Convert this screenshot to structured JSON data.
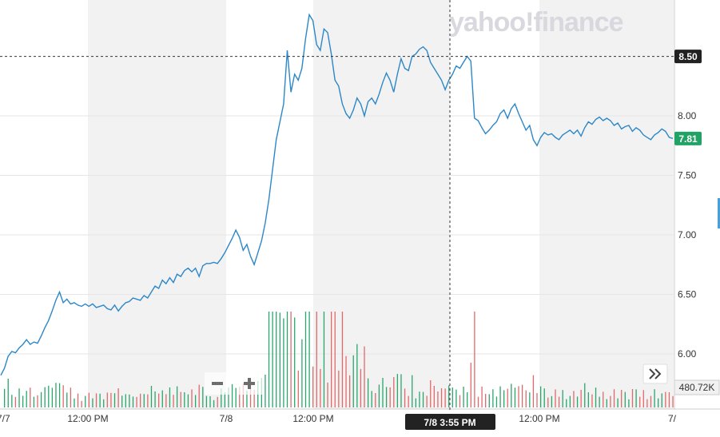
{
  "watermark": "yahoo!finance",
  "colors": {
    "line": "#2c87c8",
    "up_volume": "#2aa66d",
    "down_volume": "#e06a6a",
    "shade": "#f2f2f2",
    "last_price_badge": "#21a366",
    "crosshair_badge": "#222222"
  },
  "chart_data": {
    "type": "line",
    "title": "",
    "xlabel": "",
    "ylabel": "",
    "ylim": [
      5.55,
      8.92
    ],
    "y_ticks": [
      "6.00",
      "6.50",
      "7.00",
      "7.50",
      "8.00"
    ],
    "x_tick_labels": [
      "7/7",
      "12:00 PM",
      "7/8",
      "12:00 PM",
      "12:00 PM",
      "7/"
    ],
    "grid": true,
    "series": [
      {
        "values": [
          5.82,
          5.88,
          5.98,
          6.02,
          6.01,
          6.05,
          6.08,
          6.12,
          6.08,
          6.1,
          6.09,
          6.15,
          6.22,
          6.28,
          6.36,
          6.45,
          6.52,
          6.43,
          6.46,
          6.42,
          6.43,
          6.41,
          6.4,
          6.42,
          6.4,
          6.42,
          6.39,
          6.4,
          6.41,
          6.38,
          6.37,
          6.41,
          6.36,
          6.4,
          6.43,
          6.44,
          6.47,
          6.46,
          6.45,
          6.49,
          6.47,
          6.52,
          6.57,
          6.55,
          6.62,
          6.59,
          6.64,
          6.6,
          6.67,
          6.65,
          6.7,
          6.72,
          6.69,
          6.72,
          6.65,
          6.74,
          6.76,
          6.76,
          6.77,
          6.76,
          6.8,
          6.85,
          6.91,
          6.97,
          7.04,
          6.98,
          6.87,
          6.92,
          6.82,
          6.75,
          6.85,
          6.95,
          7.1,
          7.3,
          7.55,
          7.8,
          7.95,
          8.1,
          8.55,
          8.2,
          8.35,
          8.3,
          8.4,
          8.65,
          8.85,
          8.8,
          8.6,
          8.55,
          8.73,
          8.7,
          8.52,
          8.3,
          8.25,
          8.1,
          8.02,
          7.98,
          8.05,
          8.15,
          8.1,
          8.0,
          8.12,
          8.15,
          8.1,
          8.18,
          8.28,
          8.36,
          8.3,
          8.2,
          8.35,
          8.48,
          8.4,
          8.38,
          8.5,
          8.52,
          8.56,
          8.58,
          8.55,
          8.45,
          8.4,
          8.35,
          8.3,
          8.22,
          8.3,
          8.35,
          8.42,
          8.4,
          8.45,
          8.5,
          8.46,
          7.98,
          7.96,
          7.9,
          7.85,
          7.88,
          7.92,
          7.95,
          8.02,
          8.05,
          7.98,
          8.06,
          8.1,
          8.02,
          7.95,
          7.88,
          7.92,
          7.8,
          7.75,
          7.82,
          7.86,
          7.84,
          7.85,
          7.82,
          7.8,
          7.84,
          7.86,
          7.88,
          7.85,
          7.88,
          7.83,
          7.9,
          7.95,
          7.93,
          7.97,
          7.99,
          7.96,
          7.98,
          7.96,
          7.92,
          7.94,
          7.89,
          7.91,
          7.92,
          7.87,
          7.9,
          7.88,
          7.84,
          7.82,
          7.8,
          7.84,
          7.86,
          7.89,
          7.87,
          7.82,
          7.81
        ]
      }
    ],
    "volume_scale": "480.72K",
    "last_price": "7.81",
    "crosshair_price": "8.50",
    "crosshair_time": "7/8 3:55 PM"
  }
}
